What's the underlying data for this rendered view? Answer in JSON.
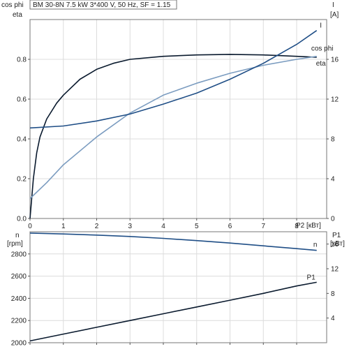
{
  "chart_data": [
    {
      "type": "line",
      "title": "BM 30-8N   7.5 kW   3*400 V, 50 Hz, SF = 1.15",
      "xlabel": "P2 [кВт]",
      "ylabel_left": [
        "cos phi",
        "eta"
      ],
      "ylabel_right": [
        "I",
        "[A]"
      ],
      "xlim": [
        0,
        8.9
      ],
      "ylim_left": [
        0,
        1.0
      ],
      "ylim_right": [
        0,
        20
      ],
      "x_ticks": [
        0,
        1,
        2,
        3,
        4,
        5,
        6,
        7,
        8
      ],
      "y_ticks_left": [
        0,
        0.2,
        0.4,
        0.6,
        0.8
      ],
      "y_ticks_right": [
        0,
        4,
        8,
        12,
        16
      ],
      "grid": true,
      "series": [
        {
          "name": "eta",
          "axis": "left",
          "color": "#0a1a2e",
          "x": [
            0,
            0.1,
            0.2,
            0.3,
            0.5,
            0.8,
            1.0,
            1.5,
            2.0,
            2.5,
            3.0,
            4.0,
            5.0,
            6.0,
            7.0,
            8.0,
            8.6
          ],
          "y": [
            0,
            0.2,
            0.33,
            0.41,
            0.5,
            0.58,
            0.62,
            0.7,
            0.75,
            0.78,
            0.8,
            0.815,
            0.822,
            0.825,
            0.822,
            0.815,
            0.81
          ]
        },
        {
          "name": "cos phi",
          "axis": "left",
          "color": "#7b9cc0",
          "x": [
            0,
            0.5,
            1,
            2,
            3,
            4,
            5,
            6,
            7,
            8,
            8.6
          ],
          "y": [
            0.1,
            0.18,
            0.27,
            0.41,
            0.53,
            0.62,
            0.68,
            0.73,
            0.77,
            0.8,
            0.815
          ]
        },
        {
          "name": "I",
          "axis": "right",
          "color": "#1f4e86",
          "x": [
            0,
            1,
            2,
            3,
            4,
            5,
            6,
            7,
            8,
            8.6
          ],
          "y": [
            9.1,
            9.3,
            9.8,
            10.5,
            11.5,
            12.6,
            14.0,
            15.6,
            17.5,
            18.9
          ]
        }
      ]
    },
    {
      "type": "line",
      "ylabel_left": [
        "n",
        "[rpm]"
      ],
      "ylabel_right": [
        "P1",
        "[кВт]"
      ],
      "xlim": [
        0,
        8.9
      ],
      "ylim_left": [
        2000,
        3000
      ],
      "ylim_right": [
        0,
        18
      ],
      "y_ticks_left": [
        2000,
        2200,
        2400,
        2600,
        2800
      ],
      "y_ticks_right": [
        4,
        8,
        12,
        16
      ],
      "grid": true,
      "series": [
        {
          "name": "n",
          "axis": "left",
          "color": "#1f4e86",
          "x": [
            0,
            1,
            2,
            3,
            4,
            5,
            6,
            7,
            8,
            8.6
          ],
          "y": [
            2988,
            2980,
            2970,
            2957,
            2940,
            2920,
            2898,
            2873,
            2848,
            2832
          ]
        },
        {
          "name": "P1",
          "axis": "right",
          "color": "#0a1a2e",
          "x": [
            0,
            1,
            2,
            3,
            4,
            5,
            6,
            7,
            8,
            8.6
          ],
          "y": [
            0.3,
            1.4,
            2.5,
            3.6,
            4.7,
            5.8,
            6.9,
            8.0,
            9.2,
            9.8
          ]
        }
      ]
    }
  ]
}
